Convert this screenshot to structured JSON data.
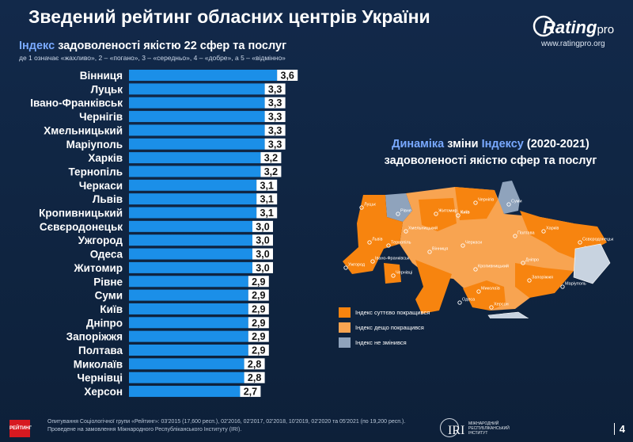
{
  "title": "Зведений рейтинг обласних центрів України",
  "logo": {
    "brand": "Rating",
    "brand_suffix": "pro",
    "url": "www.ratingpro.org"
  },
  "subtitle_accent": "Індекс",
  "subtitle_rest": " задоволеності якістю 22 сфер та послуг",
  "scale_note": "де 1 означає «жахливо», 2 – «погано», 3 – «середньо», 4 – «добре», а 5 – «відмінно»",
  "map": {
    "title_line1_accent": "Динаміка",
    "title_line1_rest": " зміни ",
    "title_line1_accent2": "Індексу",
    "title_line1_tail": " (2020-2021)",
    "title_line2": "задоволеності якістю сфер та послуг",
    "legend": [
      {
        "label": "Індекс суттєво покращився",
        "color": "#f7840f"
      },
      {
        "label": "Індекс дещо покращився",
        "color": "#f8a451"
      },
      {
        "label": "Індекс не змінився",
        "color": "#8fa3bc"
      }
    ],
    "cities": [
      "Луцьк",
      "Рівне",
      "Житомир",
      "Київ",
      "Чернігів",
      "Суми",
      "Харків",
      "Полтава",
      "Львів",
      "Тернопіль",
      "Хмельницький",
      "Вінниця",
      "Черкаси",
      "Кропивницький",
      "Дніпро",
      "Івано-Франківськ",
      "Ужгород",
      "Чернівці",
      "Одеса",
      "Миколаїв",
      "Херсон",
      "Запоріжжя",
      "Маріуполь",
      "Сєвєродонецьк"
    ],
    "colors": {
      "strong": "#f7840f",
      "some": "#f8a451",
      "none": "#8fa3bc"
    }
  },
  "footer": {
    "line1": "Опитування Соціологічної групи «Рейтинг»: 03'2015 (17,600 респ.), 02'2016, 02'2017, 02'2018, 10'2019, 02'2020 та 05'2021 (по 19,200 респ.).",
    "line2": "Проведене на замовлення Міжнародного Республіканського Інституту (IRI).",
    "logo_text": "РЕЙТИНГ"
  },
  "iri": {
    "abbr": "IRI",
    "name": "МІЖНАРОДНИЙ РЕСПУБЛІКАНСЬКИЙ ІНСТИТУТ"
  },
  "page_number": "4",
  "colors": {
    "bar": "#1b8fe8",
    "value_box": "#ffffff",
    "value_text": "#111111"
  },
  "chart_data": {
    "type": "bar",
    "orientation": "horizontal",
    "categories": [
      "Вінниця",
      "Луцьк",
      "Івано-Франківськ",
      "Чернігів",
      "Хмельницький",
      "Маріуполь",
      "Харків",
      "Тернопіль",
      "Черкаси",
      "Львів",
      "Кропивницький",
      "Сєвєродонецьк",
      "Ужгород",
      "Одеса",
      "Житомир",
      "Рівне",
      "Суми",
      "Київ",
      "Дніпро",
      "Запоріжжя",
      "Полтава",
      "Миколаїв",
      "Чернівці",
      "Херсон"
    ],
    "values": [
      3.6,
      3.3,
      3.3,
      3.3,
      3.3,
      3.3,
      3.2,
      3.2,
      3.1,
      3.1,
      3.1,
      3.0,
      3.0,
      3.0,
      3.0,
      2.9,
      2.9,
      2.9,
      2.9,
      2.9,
      2.9,
      2.8,
      2.8,
      2.7
    ],
    "value_labels": [
      "3,6",
      "3,3",
      "3,3",
      "3,3",
      "3,3",
      "3,3",
      "3,2",
      "3,2",
      "3,1",
      "3,1",
      "3,1",
      "3,0",
      "3,0",
      "3,0",
      "3,0",
      "2,9",
      "2,9",
      "2,9",
      "2,9",
      "2,9",
      "2,9",
      "2,8",
      "2,8",
      "2,7"
    ],
    "title": "Індекс задоволеності якістю 22 сфер та послуг",
    "xlabel": "",
    "ylabel": "",
    "grid": false
  }
}
